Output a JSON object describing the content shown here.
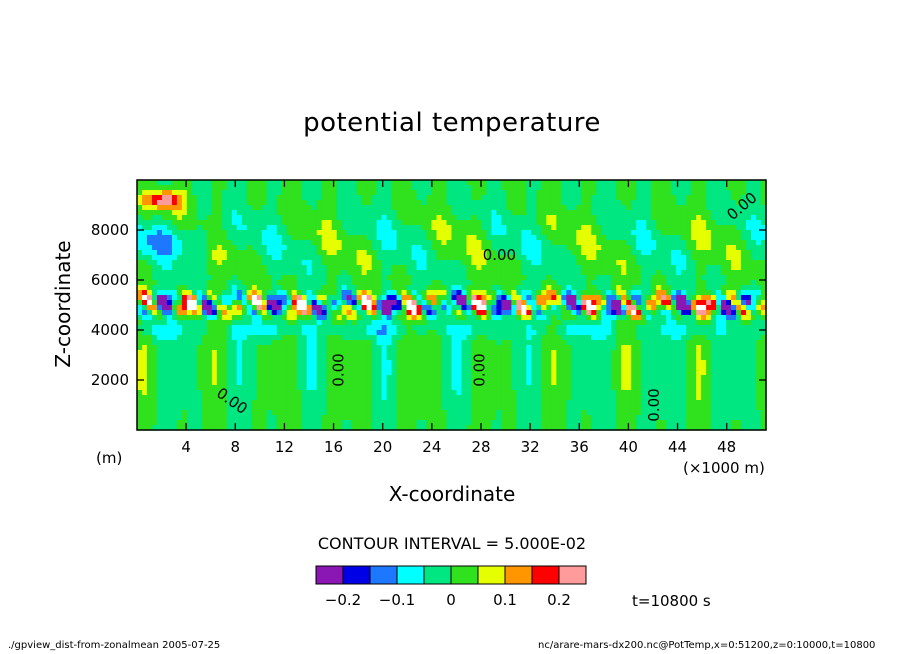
{
  "chart_data": {
    "type": "heatmap",
    "title": "potential temperature",
    "xlabel": "X-coordinate",
    "ylabel": "Z-coordinate",
    "x_unit_left": "(m)",
    "x_unit_right": "(×1000 m)",
    "x_ticks": [
      4,
      8,
      12,
      16,
      20,
      24,
      28,
      32,
      36,
      40,
      44,
      48
    ],
    "y_ticks": [
      2000,
      4000,
      6000,
      8000
    ],
    "xlim": [
      0,
      51.2
    ],
    "ylim": [
      0,
      10000
    ],
    "contour_interval_text": "CONTOUR INTERVAL = 5.000E-02",
    "contour_labels": [
      "0.00",
      "0.00",
      "0.00",
      "0.00",
      "0.00",
      "0.00"
    ],
    "colorbar": {
      "colors": [
        "#8a16b4",
        "#0000e6",
        "#1e78ff",
        "#00ffff",
        "#00e680",
        "#30e11e",
        "#e6ff00",
        "#ff9600",
        "#ff0000",
        "#ff9b9b"
      ],
      "tick_labels": [
        "−0.2",
        "−0.1",
        "0",
        "0.1",
        "0.2"
      ],
      "tick_values": [
        -0.2,
        -0.1,
        0,
        0.1,
        0.2
      ],
      "range": [
        -0.25,
        0.25
      ]
    },
    "time_label": "t=10800 s"
  },
  "footer": {
    "left": "./gpview_dist-from-zonalmean  2005-07-25",
    "right": "nc/arare-mars-dx200.nc@PotTemp,x=0:51200,z=0:10000,t=10800"
  }
}
